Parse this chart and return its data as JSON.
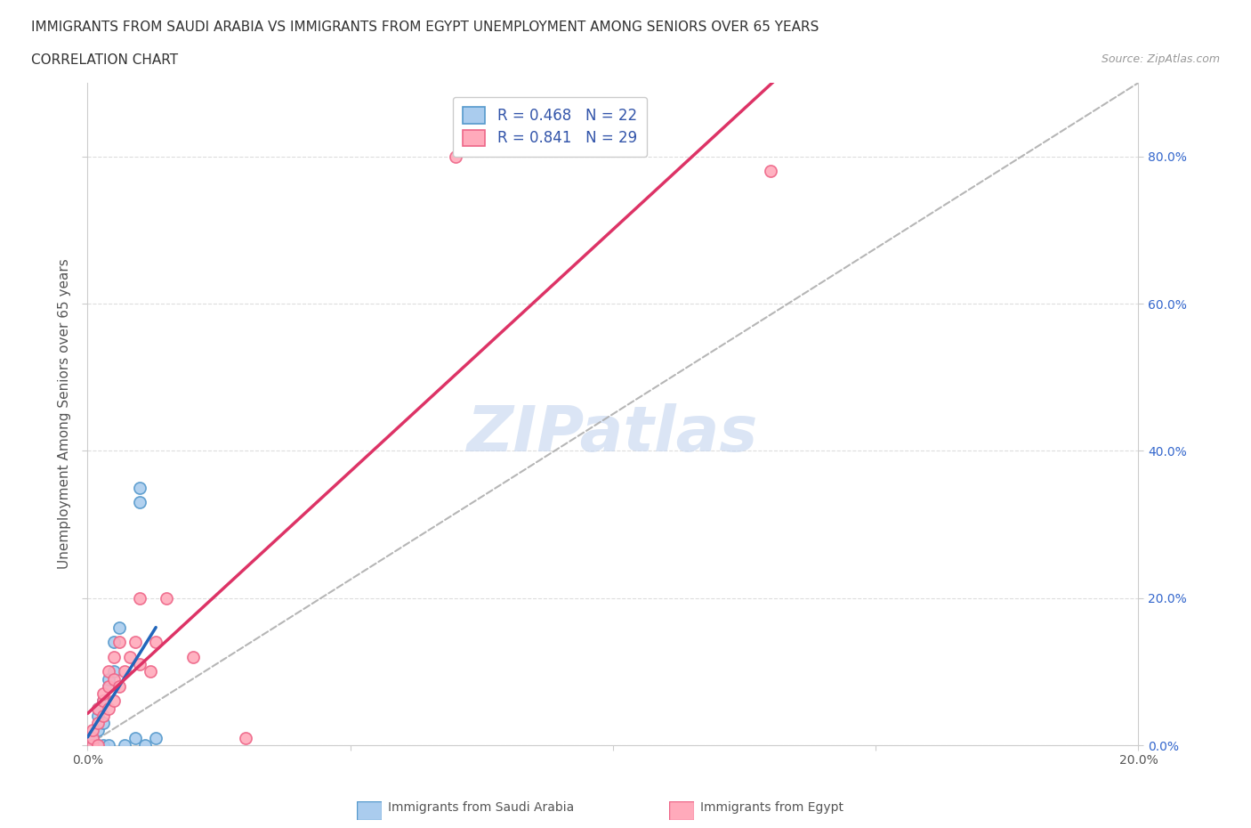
{
  "title_line1": "IMMIGRANTS FROM SAUDI ARABIA VS IMMIGRANTS FROM EGYPT UNEMPLOYMENT AMONG SENIORS OVER 65 YEARS",
  "title_line2": "CORRELATION CHART",
  "source_text": "Source: ZipAtlas.com",
  "ylabel": "Unemployment Among Seniors over 65 years",
  "xlim": [
    0.0,
    0.2
  ],
  "ylim": [
    0.0,
    0.9
  ],
  "xticks": [
    0.0,
    0.05,
    0.1,
    0.15,
    0.2
  ],
  "yticks": [
    0.0,
    0.2,
    0.4,
    0.6,
    0.8
  ],
  "right_ytick_labels": [
    "0.0%",
    "20.0%",
    "40.0%",
    "60.0%",
    "80.0%"
  ],
  "xtick_labels": [
    "0.0%",
    "",
    "",
    "",
    "20.0%"
  ],
  "saudi_color": "#aaccee",
  "saudi_edge_color": "#5599cc",
  "egypt_color": "#ffaabb",
  "egypt_edge_color": "#ee6688",
  "saudi_trend_color": "#2266bb",
  "egypt_trend_color": "#dd3366",
  "diagonal_color": "#aaaaaa",
  "legend_R_saudi": "R = 0.468",
  "legend_N_saudi": "N = 22",
  "legend_R_egypt": "R = 0.841",
  "legend_N_egypt": "N = 29",
  "watermark": "ZIPatlas",
  "watermark_color": "#c8d8f0",
  "saudi_x": [
    0.001,
    0.001,
    0.001,
    0.002,
    0.002,
    0.002,
    0.002,
    0.003,
    0.003,
    0.003,
    0.004,
    0.004,
    0.004,
    0.005,
    0.005,
    0.006,
    0.007,
    0.009,
    0.01,
    0.01,
    0.011,
    0.013
  ],
  "saudi_y": [
    0.0,
    0.0,
    0.01,
    0.0,
    0.02,
    0.04,
    0.05,
    0.0,
    0.03,
    0.06,
    0.0,
    0.08,
    0.09,
    0.1,
    0.14,
    0.16,
    0.0,
    0.01,
    0.33,
    0.35,
    0.0,
    0.01
  ],
  "egypt_x": [
    0.001,
    0.001,
    0.001,
    0.002,
    0.002,
    0.002,
    0.003,
    0.003,
    0.003,
    0.004,
    0.004,
    0.004,
    0.005,
    0.005,
    0.005,
    0.006,
    0.006,
    0.007,
    0.008,
    0.009,
    0.01,
    0.01,
    0.012,
    0.013,
    0.015,
    0.02,
    0.03,
    0.07,
    0.13
  ],
  "egypt_y": [
    0.0,
    0.01,
    0.02,
    0.0,
    0.03,
    0.05,
    0.04,
    0.06,
    0.07,
    0.05,
    0.08,
    0.1,
    0.06,
    0.09,
    0.12,
    0.08,
    0.14,
    0.1,
    0.12,
    0.14,
    0.11,
    0.2,
    0.1,
    0.14,
    0.2,
    0.12,
    0.01,
    0.8,
    0.78
  ],
  "saudi_trend_x": [
    0.0,
    0.013
  ],
  "egypt_trend_x": [
    0.0,
    0.2
  ],
  "title_fontsize": 11,
  "axis_label_fontsize": 11,
  "tick_fontsize": 10,
  "legend_fontsize": 12,
  "background_color": "#ffffff"
}
